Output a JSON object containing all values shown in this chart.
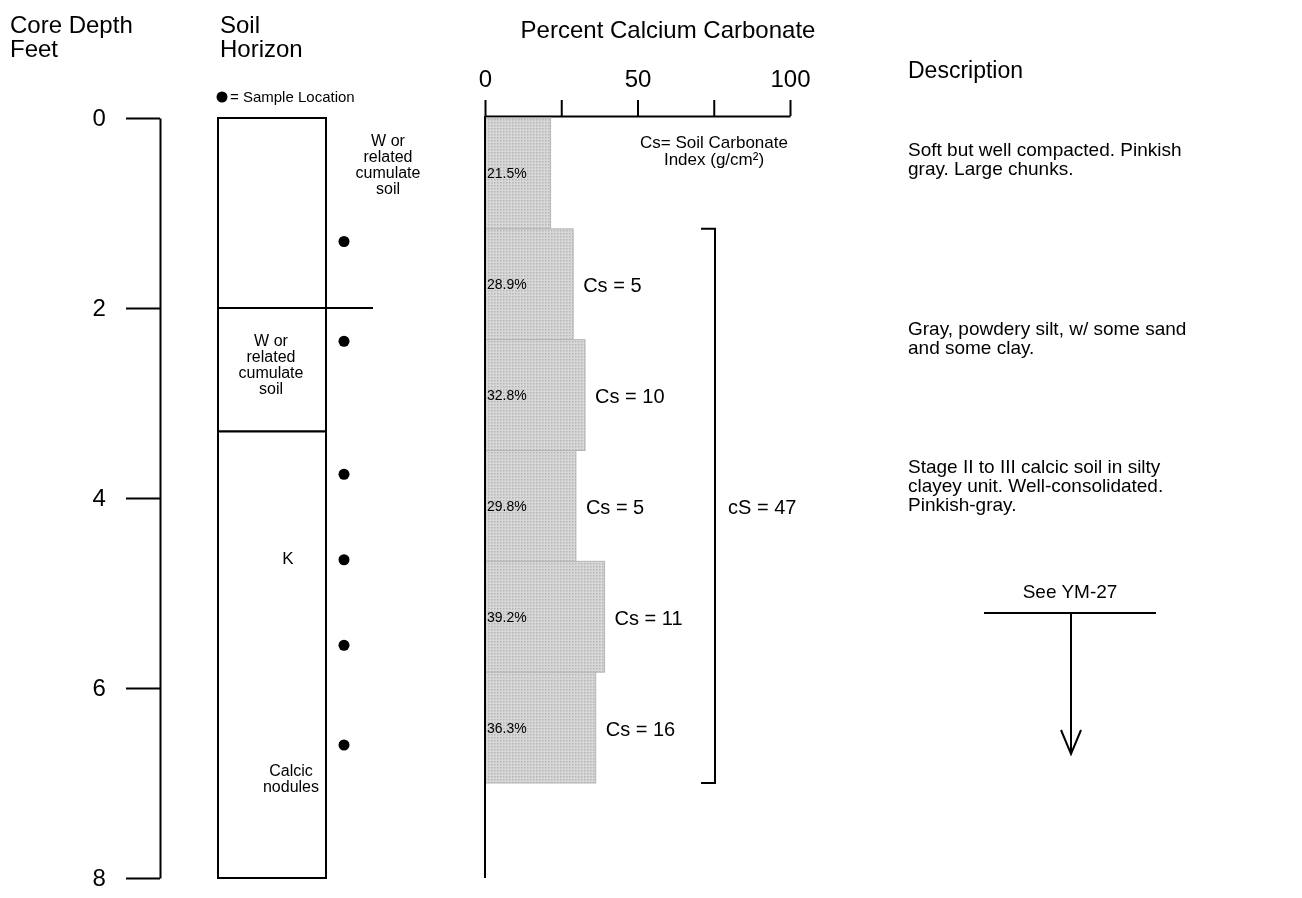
{
  "chart_data": [
    {
      "type": "bar",
      "stacked": true,
      "ylabel": "Core Depth\nFeet",
      "ylim": [
        8,
        0
      ],
      "yticks": [
        0,
        2,
        4,
        6,
        8
      ],
      "categories": [
        null
      ],
      "series": [
        {
          "name": "W or\nrelated\ncumulate\nsoil",
          "color": "#ffffff",
          "values": [
            2
          ]
        },
        {
          "name": "W or\nrelated\ncumulate\nsoil",
          "color": "#ffffff",
          "values": [
            1.3
          ]
        },
        {
          "name": "K",
          "color": "#ffffff",
          "values": [
            4.7
          ]
        }
      ],
      "annotations": [
        "Soil\nHorizon",
        "= Sample Location",
        "Calcic\nnodules"
      ]
    },
    {
      "type": "bar",
      "orientation": "horizontal",
      "title": "Percent Calcium Carbonate",
      "categories": [
        null,
        null,
        null,
        null,
        null,
        null
      ],
      "values": [
        21.5,
        28.9,
        32.8,
        29.8,
        39.2,
        36.3
      ],
      "value_labels": [
        "21.5%",
        "28.9%",
        "32.8%",
        "29.8%",
        "39.2%",
        "36.3%"
      ],
      "color": "#b4b4b4",
      "xlim": [
        0,
        100
      ],
      "xticks": [
        0,
        {
          "value": 25,
          "label": null
        },
        50,
        {
          "value": 75,
          "label": null
        },
        100
      ],
      "grid": false,
      "annotations": [
        "Cs= Soil Carbonate\nIndex (g/cm²)",
        "Cs = 5",
        "Cs = 10",
        "Cs = 5",
        "Cs = 11",
        "Cs = 16",
        "cS = 47",
        "Description",
        "Soft but well compacted.  Pinkish\ngray.  Large chunks.",
        "Gray, powdery silt, w/ some sand\nand some clay.",
        "Stage II to III calcic soil in silty\nclayey unit.  Well-consolidated.\nPinkish-gray.",
        "See YM-27"
      ]
    }
  ]
}
